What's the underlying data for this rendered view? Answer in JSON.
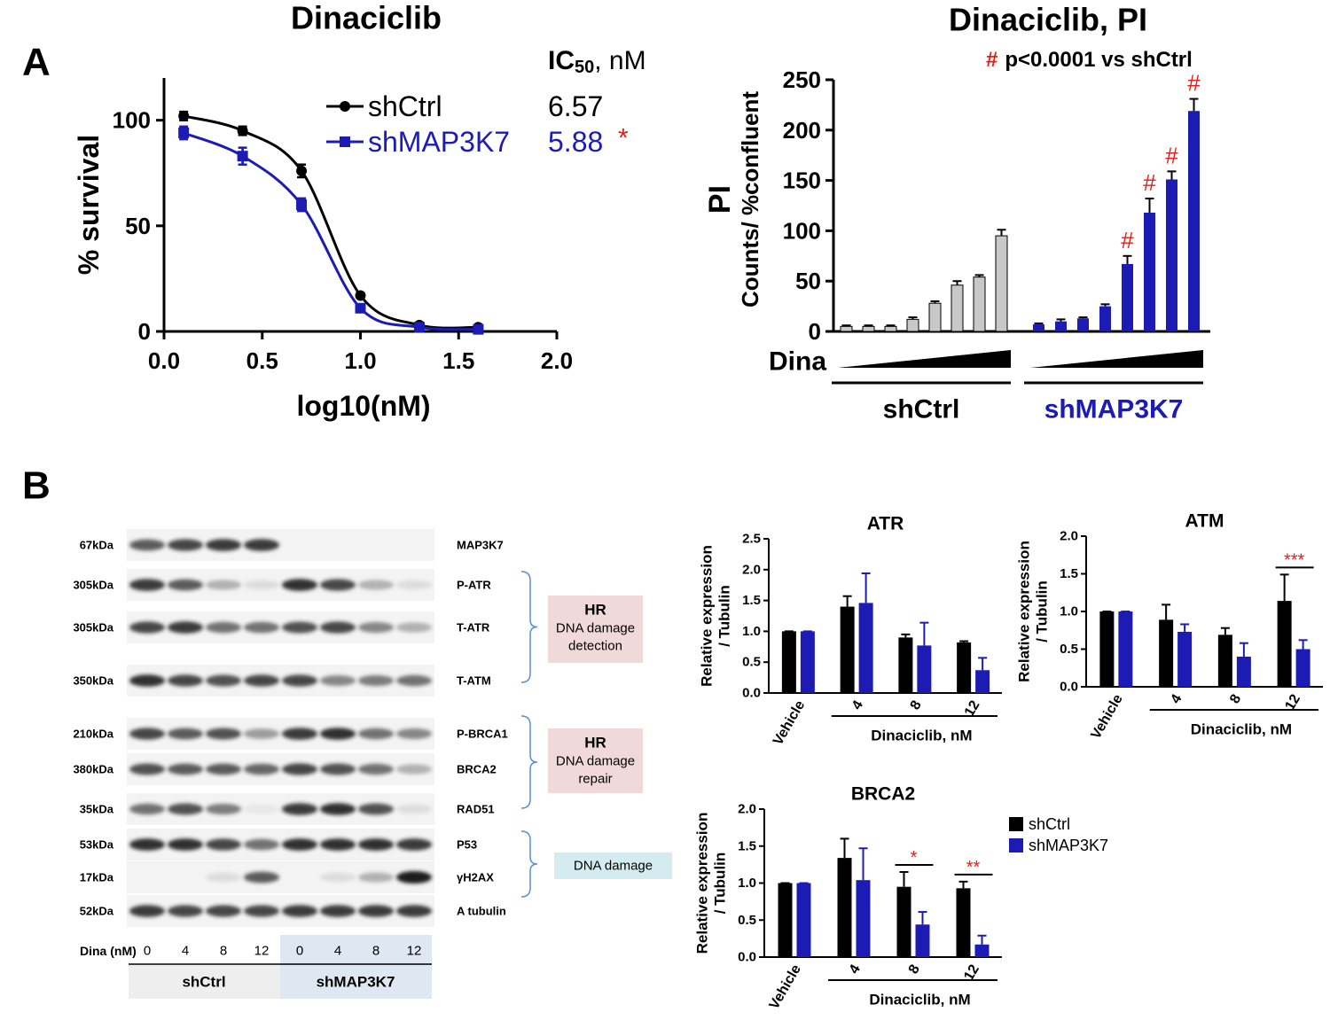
{
  "panel_labels": [
    "A",
    "B"
  ],
  "chart_data": [
    {
      "type": "line",
      "title": "Dinaciclib",
      "xlabel": "log10(nM)",
      "ylabel": "% survival",
      "xlim": [
        0,
        2
      ],
      "xticks": [
        {
          "value": 0,
          "label": "0.0"
        },
        {
          "value": 0.5,
          "label": "0.5"
        },
        {
          "value": 1,
          "label": "1.0"
        },
        {
          "value": 1.5,
          "label": "1.5"
        },
        {
          "value": 2,
          "label": "2.0"
        }
      ],
      "ylim": [
        0,
        120
      ],
      "yticks": [
        0,
        50,
        100
      ],
      "legend_title": {
        "main": "IC",
        "sub": "50",
        "unit": ", nM"
      },
      "x": [
        0.1,
        0.4,
        0.7,
        1.0,
        1.3,
        1.6
      ],
      "series": [
        {
          "name": "shCtrl",
          "color": "#000000",
          "marker": "circle",
          "values": [
            102,
            95,
            76,
            17,
            3,
            2
          ],
          "errors": [
            2,
            2,
            3,
            1,
            1,
            1
          ],
          "ic50": 6.57
        },
        {
          "name": "shMAP3K7",
          "color": "#1c1cb4",
          "marker": "square",
          "values": [
            94,
            83,
            60,
            11,
            2,
            1
          ],
          "errors": [
            3,
            4,
            3,
            1,
            0.5,
            0.5
          ],
          "ic50": 5.88,
          "annotation": "*"
        }
      ]
    },
    {
      "type": "bar",
      "title": "Dinaciclib, PI",
      "annotation": {
        "symbol": "#",
        "text": "p<0.0001 vs shCtrl"
      },
      "ylabel": "PI",
      "ylabel2": "Counts/ %confluent",
      "x_prefix": "Dina",
      "ylim": [
        0,
        250
      ],
      "yticks": [
        0,
        50,
        100,
        150,
        200,
        250
      ],
      "groups": [
        {
          "name": "shCtrl",
          "color": "#c8c8c8",
          "label_color": "#000000",
          "values": [
            5,
            5,
            5,
            12,
            28,
            46,
            54,
            95
          ],
          "errors": [
            1,
            1,
            1,
            2,
            2,
            4,
            2,
            6
          ]
        },
        {
          "name": "shMAP3K7",
          "color": "#1c1cb4",
          "label_color": "#1c1cb4",
          "values": [
            7,
            10,
            13,
            25,
            67,
            118,
            151,
            219
          ],
          "errors": [
            1,
            2,
            1,
            2,
            8,
            14,
            8,
            12
          ],
          "markers": [
            null,
            null,
            null,
            null,
            "#",
            "#",
            "#",
            "#"
          ]
        }
      ]
    },
    {
      "type": "grouped_bar",
      "title": "ATR",
      "ylabel": "Relative expression",
      "ylabel2": "/ Tubulin",
      "xlabel": "Dinaciclib, nM",
      "categories": [
        "Vehicle",
        "4",
        "8",
        "12"
      ],
      "ylim": [
        0,
        2.5
      ],
      "yticks": [
        {
          "value": 0,
          "label": "0.0"
        },
        {
          "value": 0.5,
          "label": "0.5"
        },
        {
          "value": 1,
          "label": "1.0"
        },
        {
          "value": 1.5,
          "label": "1.5"
        },
        {
          "value": 2,
          "label": "2.0"
        },
        {
          "value": 2.5,
          "label": "2.5"
        }
      ],
      "series": [
        {
          "name": "shCtrl",
          "color": "#000000",
          "values": [
            1,
            1.4,
            0.9,
            0.82
          ],
          "errors": [
            0,
            0.17,
            0.05,
            0.02
          ]
        },
        {
          "name": "shMAP3K7",
          "color": "#1c1cb4",
          "values": [
            1,
            1.46,
            0.77,
            0.37
          ],
          "errors": [
            0,
            0.48,
            0.37,
            0.2
          ]
        }
      ],
      "legend": false
    },
    {
      "type": "grouped_bar",
      "title": "ATM",
      "ylabel": "Relative expression",
      "ylabel2": "/ Tubulin",
      "xlabel": "Dinaciclib, nM",
      "categories": [
        "Vehicle",
        "4",
        "8",
        "12"
      ],
      "ylim": [
        0,
        2
      ],
      "yticks": [
        {
          "value": 0,
          "label": "0.0"
        },
        {
          "value": 0.5,
          "label": "0.5"
        },
        {
          "value": 1,
          "label": "1.0"
        },
        {
          "value": 1.5,
          "label": "1.5"
        },
        {
          "value": 2,
          "label": "2.0"
        }
      ],
      "series": [
        {
          "name": "shCtrl",
          "color": "#000000",
          "values": [
            1,
            0.89,
            0.69,
            1.14
          ],
          "errors": [
            0,
            0.2,
            0.09,
            0.35
          ]
        },
        {
          "name": "shMAP3K7",
          "color": "#1c1cb4",
          "values": [
            1,
            0.73,
            0.4,
            0.5
          ],
          "errors": [
            0,
            0.1,
            0.18,
            0.12
          ]
        }
      ],
      "significance": [
        null,
        null,
        null,
        "***"
      ],
      "legend": false
    },
    {
      "type": "grouped_bar",
      "title": "BRCA2",
      "ylabel": "Relative expression",
      "ylabel2": "/ Tubulin",
      "xlabel": "Dinaciclib, nM",
      "categories": [
        "Vehicle",
        "4",
        "8",
        "12"
      ],
      "ylim": [
        0,
        2
      ],
      "yticks": [
        {
          "value": 0,
          "label": "0.0"
        },
        {
          "value": 0.5,
          "label": "0.5"
        },
        {
          "value": 1,
          "label": "1.0"
        },
        {
          "value": 1.5,
          "label": "1.5"
        },
        {
          "value": 2,
          "label": "2.0"
        }
      ],
      "series": [
        {
          "name": "shCtrl",
          "color": "#000000",
          "values": [
            1,
            1.34,
            0.95,
            0.93
          ],
          "errors": [
            0,
            0.26,
            0.2,
            0.09
          ]
        },
        {
          "name": "shMAP3K7",
          "color": "#1c1cb4",
          "values": [
            1,
            1.04,
            0.44,
            0.17
          ],
          "errors": [
            0,
            0.43,
            0.17,
            0.12
          ]
        }
      ],
      "significance": [
        null,
        null,
        "*",
        "**"
      ],
      "legend": true
    }
  ],
  "blot": {
    "rows": [
      {
        "size": "67kDa",
        "protein": "MAP3K7"
      },
      {
        "size": "305kDa",
        "protein": "P-ATR"
      },
      {
        "size": "305kDa",
        "protein": "T-ATR"
      },
      {
        "size": "350kDa",
        "protein": "T-ATM"
      },
      {
        "size": "210kDa",
        "protein": "P-BRCA1"
      },
      {
        "size": "380kDa",
        "protein": "BRCA2"
      },
      {
        "size": "35kDa",
        "protein": "RAD51"
      },
      {
        "size": "53kDa",
        "protein": "P53"
      },
      {
        "size": "17kDa",
        "protein": "γH2AX"
      },
      {
        "size": "52kDa",
        "protein": "A tubulin"
      }
    ],
    "brackets": [
      {
        "title": "HR",
        "text": [
          "DNA damage",
          "detection"
        ]
      },
      {
        "title": "HR",
        "text": [
          "DNA damage",
          "repair"
        ]
      },
      {
        "text": [
          "DNA damage"
        ]
      }
    ],
    "dose_label": "Dina (nM)",
    "lanes": [
      "0",
      "4",
      "8",
      "12",
      "0",
      "4",
      "8",
      "12"
    ],
    "groups": [
      "shCtrl",
      "shMAP3K7"
    ]
  }
}
